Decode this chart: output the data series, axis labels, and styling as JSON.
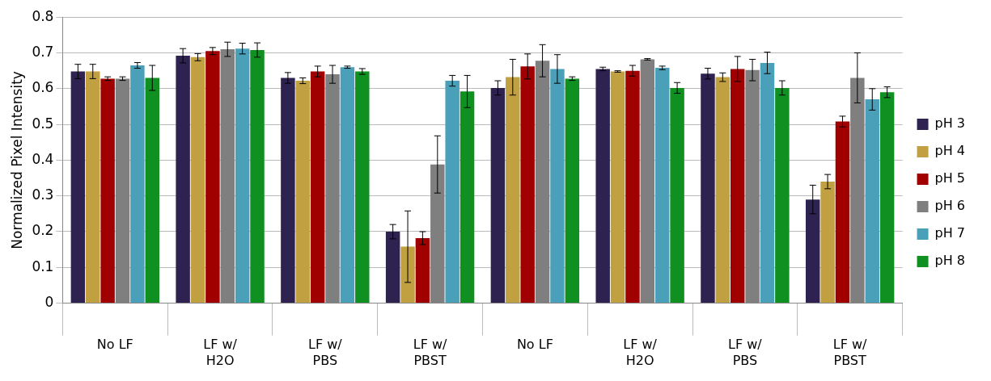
{
  "chart_data": {
    "type": "bar",
    "ylabel": "Normalized Pixel Intensity",
    "categories": [
      "No LF",
      "LF w/ H2O",
      "LF w/ PBS",
      "LF w/ PBST",
      "No LF",
      "LF w/ H2O",
      "LF w/ PBS",
      "LF w/ PBST"
    ],
    "series": [
      {
        "name": "pH 3",
        "color": "#2e2350",
        "values": [
          0.648,
          0.692,
          0.63,
          0.2,
          0.602,
          0.655,
          0.642,
          0.29
        ],
        "errors": [
          0.02,
          0.02,
          0.015,
          0.02,
          0.02,
          0.005,
          0.015,
          0.04
        ]
      },
      {
        "name": "pH 4",
        "color": "#c0a040",
        "values": [
          0.648,
          0.688,
          0.622,
          0.158,
          0.632,
          0.648,
          0.632,
          0.34
        ],
        "errors": [
          0.02,
          0.01,
          0.008,
          0.1,
          0.05,
          0.002,
          0.012,
          0.02
        ]
      },
      {
        "name": "pH 5",
        "color": "#a00000",
        "values": [
          0.628,
          0.705,
          0.648,
          0.182,
          0.662,
          0.65,
          0.655,
          0.508
        ],
        "errors": [
          0.005,
          0.01,
          0.015,
          0.018,
          0.035,
          0.015,
          0.035,
          0.015
        ]
      },
      {
        "name": "pH 6",
        "color": "#7f7f7f",
        "values": [
          0.628,
          0.71,
          0.64,
          0.388,
          0.678,
          0.682,
          0.652,
          0.63
        ],
        "errors": [
          0.005,
          0.02,
          0.025,
          0.08,
          0.045,
          0.002,
          0.03,
          0.07
        ]
      },
      {
        "name": "pH 7",
        "color": "#4aa0b8",
        "values": [
          0.665,
          0.712,
          0.66,
          0.622,
          0.655,
          0.658,
          0.672,
          0.57
        ],
        "errors": [
          0.008,
          0.015,
          0.003,
          0.015,
          0.04,
          0.005,
          0.03,
          0.03
        ]
      },
      {
        "name": "pH 8",
        "color": "#109020",
        "values": [
          0.63,
          0.708,
          0.648,
          0.592,
          0.628,
          0.602,
          0.602,
          0.59
        ],
        "errors": [
          0.035,
          0.02,
          0.008,
          0.045,
          0.005,
          0.015,
          0.02,
          0.015
        ]
      }
    ],
    "ylim": [
      0,
      0.8
    ],
    "yticks": [
      0,
      0.1,
      0.2,
      0.3,
      0.4,
      0.5,
      0.6,
      0.7,
      0.8
    ],
    "grid": "y",
    "legend": "right"
  }
}
